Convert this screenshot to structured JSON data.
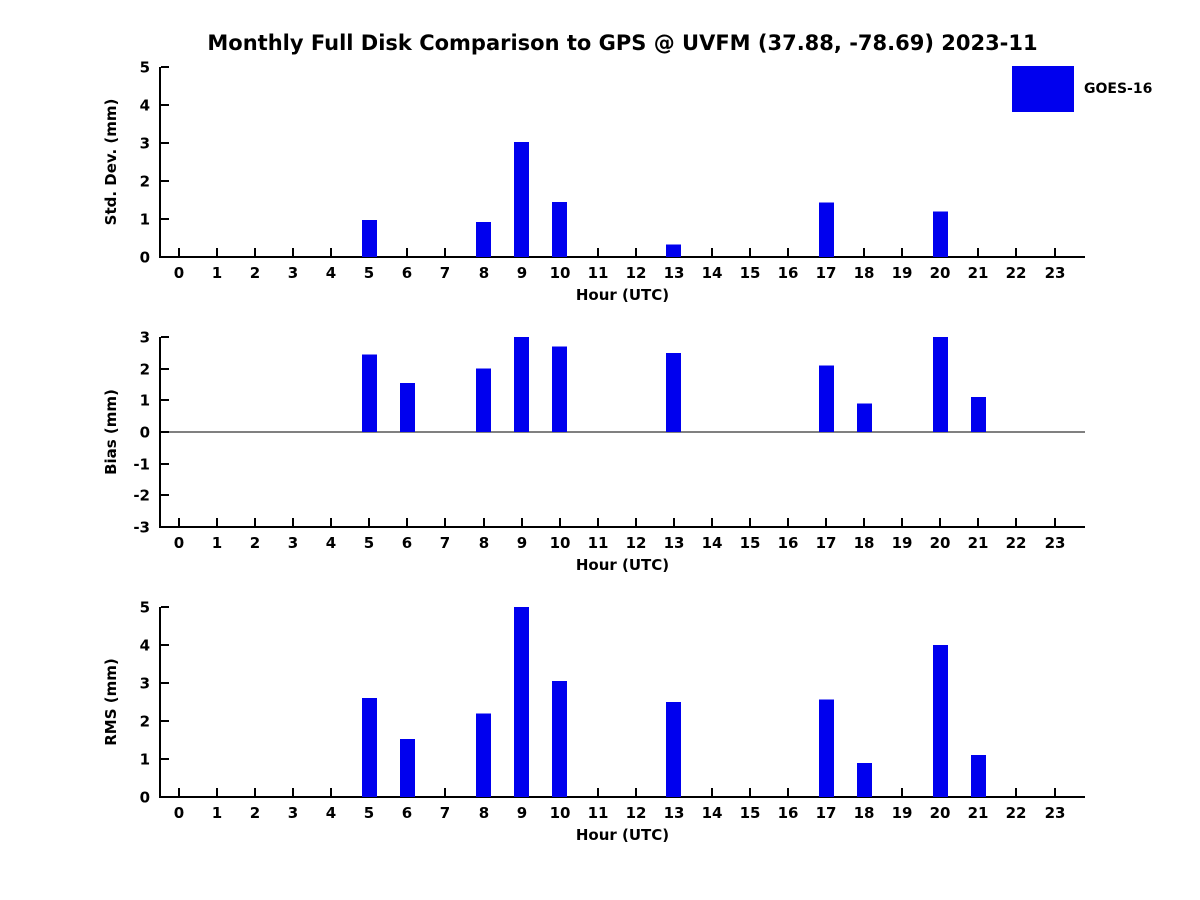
{
  "title": "Monthly Full Disk Comparison to GPS @ UVFM (37.88, -78.69) 2023-11",
  "legend": {
    "label": "GOES-16",
    "color": "#0000ee",
    "position": "top-right"
  },
  "colors": {
    "bar": "#0000ee",
    "axis": "#000000",
    "text": "#000000",
    "background": "#ffffff"
  },
  "chart_data": [
    {
      "type": "bar",
      "ylabel": "Std. Dev. (mm)",
      "xlabel": "Hour (UTC)",
      "categories": [
        0,
        1,
        2,
        3,
        4,
        5,
        6,
        7,
        8,
        9,
        10,
        11,
        12,
        13,
        14,
        15,
        16,
        17,
        18,
        19,
        20,
        21,
        22,
        23
      ],
      "values": [
        0,
        0,
        0,
        0,
        0,
        0.97,
        0,
        0,
        0.92,
        3.03,
        1.45,
        0,
        0,
        0.33,
        0,
        0,
        0,
        1.43,
        0,
        0,
        1.2,
        0,
        0,
        0
      ],
      "ylim": [
        0,
        5
      ],
      "yticks": [
        0,
        1,
        2,
        3,
        4,
        5
      ],
      "xlim": [
        -0.5,
        23.8
      ],
      "zero_line": false,
      "grid": false,
      "series_name": "GOES-16"
    },
    {
      "type": "bar",
      "ylabel": "Bias (mm)",
      "xlabel": "Hour (UTC)",
      "categories": [
        0,
        1,
        2,
        3,
        4,
        5,
        6,
        7,
        8,
        9,
        10,
        11,
        12,
        13,
        14,
        15,
        16,
        17,
        18,
        19,
        20,
        21,
        22,
        23
      ],
      "values": [
        0,
        0,
        0,
        0,
        0,
        2.45,
        1.55,
        0,
        2.0,
        3.0,
        2.7,
        0,
        0,
        2.5,
        0,
        0,
        0,
        2.1,
        0.9,
        0,
        3.0,
        1.1,
        0,
        0
      ],
      "ylim": [
        -3,
        3
      ],
      "yticks": [
        3,
        2,
        1,
        0,
        -1,
        -2,
        -3
      ],
      "xlim": [
        -0.5,
        23.8
      ],
      "zero_line": true,
      "grid": false,
      "series_name": "GOES-16"
    },
    {
      "type": "bar",
      "ylabel": "RMS (mm)",
      "xlabel": "Hour (UTC)",
      "categories": [
        0,
        1,
        2,
        3,
        4,
        5,
        6,
        7,
        8,
        9,
        10,
        11,
        12,
        13,
        14,
        15,
        16,
        17,
        18,
        19,
        20,
        21,
        22,
        23
      ],
      "values": [
        0,
        0,
        0,
        0,
        0,
        2.6,
        1.53,
        0,
        2.2,
        5.0,
        3.05,
        0,
        0,
        2.5,
        0,
        0,
        0,
        2.57,
        0.9,
        0,
        4.0,
        1.1,
        0,
        0
      ],
      "ylim": [
        0,
        5
      ],
      "yticks": [
        0,
        1,
        2,
        3,
        4,
        5
      ],
      "xlim": [
        -0.5,
        23.8
      ],
      "zero_line": false,
      "grid": false,
      "series_name": "GOES-16"
    }
  ]
}
